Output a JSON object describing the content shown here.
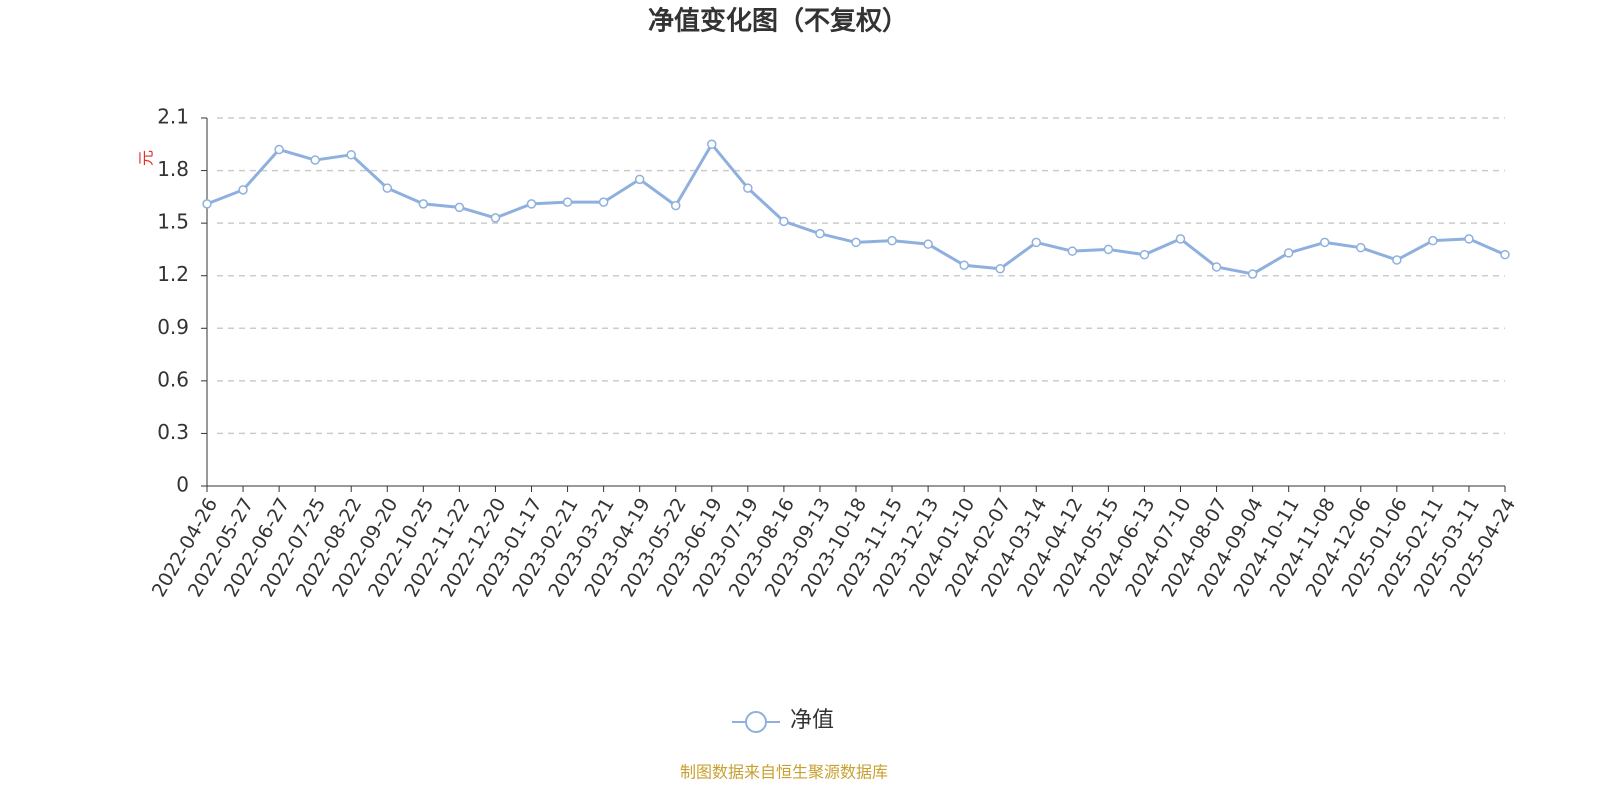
{
  "chart_data": {
    "type": "line",
    "title": "净值变化图（不复权）",
    "y_label": "元",
    "source": "制图数据来自恒生聚源数据库",
    "categories": [
      "2022-04-26",
      "2022-05-27",
      "2022-06-27",
      "2022-07-25",
      "2022-08-22",
      "2022-09-20",
      "2022-10-25",
      "2022-11-22",
      "2022-12-20",
      "2023-01-17",
      "2023-02-21",
      "2023-03-21",
      "2023-04-19",
      "2023-05-22",
      "2023-06-19",
      "2023-07-19",
      "2023-08-16",
      "2023-09-13",
      "2023-10-18",
      "2023-11-15",
      "2023-12-13",
      "2024-01-10",
      "2024-02-07",
      "2024-03-14",
      "2024-04-12",
      "2024-05-15",
      "2024-06-13",
      "2024-07-10",
      "2024-08-07",
      "2024-09-04",
      "2024-10-11",
      "2024-11-08",
      "2024-12-06",
      "2025-01-06",
      "2025-02-11",
      "2025-03-11",
      "2025-04-24"
    ],
    "series": [
      {
        "name": "净值",
        "color": "#8fb0de",
        "values": [
          1.61,
          1.69,
          1.92,
          1.86,
          1.89,
          1.7,
          1.61,
          1.59,
          1.53,
          1.61,
          1.62,
          1.62,
          1.75,
          1.6,
          1.95,
          1.7,
          1.51,
          1.44,
          1.39,
          1.4,
          1.38,
          1.26,
          1.24,
          1.39,
          1.34,
          1.35,
          1.32,
          1.41,
          1.25,
          1.21,
          1.33,
          1.39,
          1.36,
          1.29,
          1.4,
          1.41,
          1.32
        ]
      }
    ],
    "ylim": [
      0,
      2.1
    ],
    "yticks": [
      0,
      0.3,
      0.6,
      0.9,
      1.2,
      1.5,
      1.8,
      2.1
    ],
    "grid": true
  }
}
